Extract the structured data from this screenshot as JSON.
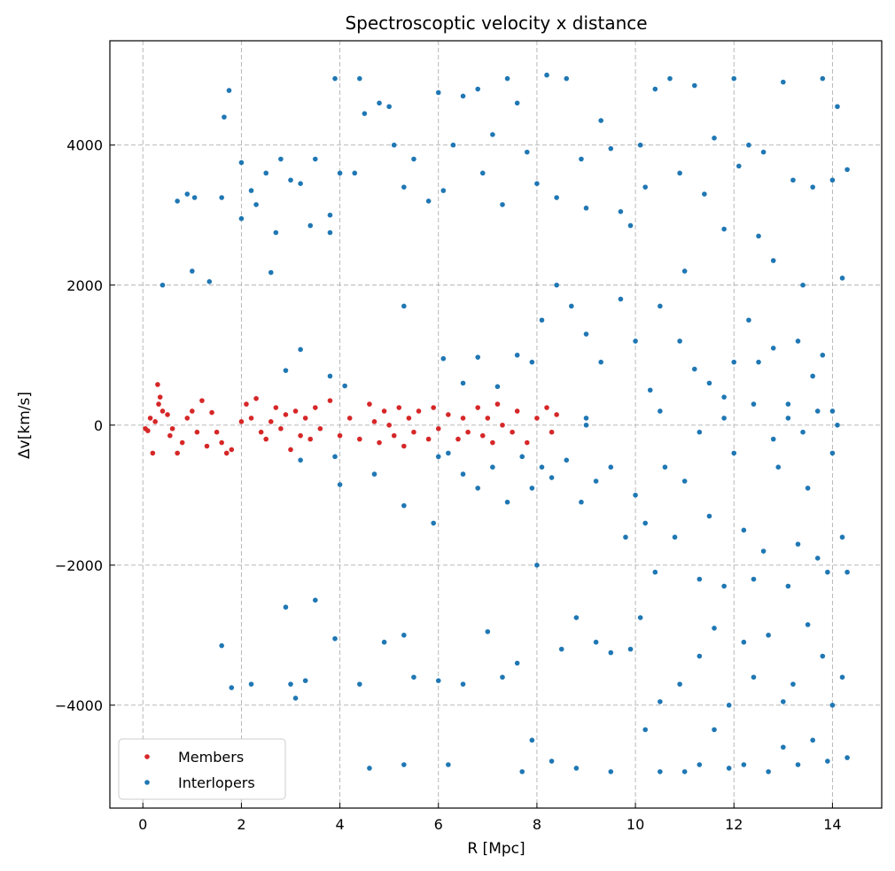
{
  "chart_data": {
    "type": "scatter",
    "title": "Spectroscoptic velocity x distance",
    "xlabel": "R [Mpc]",
    "ylabel": "Δv[km/s]",
    "xlim": [
      -0.67,
      15.0
    ],
    "ylim": [
      -5470,
      5490
    ],
    "xticks": [
      0,
      2,
      4,
      6,
      8,
      10,
      12,
      14
    ],
    "yticks": [
      -4000,
      -2000,
      0,
      2000,
      4000
    ],
    "xtick_labels": [
      "0",
      "2",
      "4",
      "6",
      "8",
      "10",
      "12",
      "14"
    ],
    "ytick_labels": [
      "−4000",
      "−2000",
      "0",
      "2000",
      "4000"
    ],
    "grid": true,
    "legend_position": "lower-left",
    "series": [
      {
        "name": "Members",
        "color": "#d62728",
        "points": [
          [
            0.05,
            -50
          ],
          [
            0.1,
            -80
          ],
          [
            0.15,
            100
          ],
          [
            0.2,
            -400
          ],
          [
            0.25,
            50
          ],
          [
            0.3,
            580
          ],
          [
            0.32,
            300
          ],
          [
            0.35,
            400
          ],
          [
            0.4,
            200
          ],
          [
            0.5,
            150
          ],
          [
            0.55,
            -150
          ],
          [
            0.6,
            -50
          ],
          [
            0.7,
            -400
          ],
          [
            0.8,
            -250
          ],
          [
            0.9,
            100
          ],
          [
            1.0,
            200
          ],
          [
            1.1,
            -100
          ],
          [
            1.2,
            350
          ],
          [
            1.3,
            -300
          ],
          [
            1.4,
            180
          ],
          [
            1.5,
            -100
          ],
          [
            1.6,
            -250
          ],
          [
            1.7,
            -400
          ],
          [
            1.8,
            -350
          ],
          [
            2.0,
            50
          ],
          [
            2.1,
            300
          ],
          [
            2.2,
            100
          ],
          [
            2.3,
            380
          ],
          [
            2.4,
            -100
          ],
          [
            2.5,
            -200
          ],
          [
            2.6,
            50
          ],
          [
            2.7,
            250
          ],
          [
            2.8,
            -50
          ],
          [
            2.9,
            150
          ],
          [
            3.0,
            -350
          ],
          [
            3.1,
            200
          ],
          [
            3.2,
            -150
          ],
          [
            3.3,
            100
          ],
          [
            3.4,
            -200
          ],
          [
            3.5,
            250
          ],
          [
            3.6,
            -50
          ],
          [
            3.8,
            350
          ],
          [
            4.0,
            -150
          ],
          [
            4.2,
            100
          ],
          [
            4.4,
            -200
          ],
          [
            4.6,
            300
          ],
          [
            4.7,
            50
          ],
          [
            4.8,
            -250
          ],
          [
            4.9,
            200
          ],
          [
            5.0,
            0
          ],
          [
            5.1,
            -150
          ],
          [
            5.2,
            250
          ],
          [
            5.3,
            -300
          ],
          [
            5.4,
            100
          ],
          [
            5.5,
            -100
          ],
          [
            5.6,
            200
          ],
          [
            5.8,
            -200
          ],
          [
            5.9,
            250
          ],
          [
            6.0,
            -50
          ],
          [
            6.2,
            150
          ],
          [
            6.4,
            -200
          ],
          [
            6.5,
            100
          ],
          [
            6.6,
            -100
          ],
          [
            6.8,
            250
          ],
          [
            6.9,
            -150
          ],
          [
            7.0,
            100
          ],
          [
            7.1,
            -250
          ],
          [
            7.2,
            300
          ],
          [
            7.3,
            0
          ],
          [
            7.5,
            -100
          ],
          [
            7.6,
            200
          ],
          [
            7.8,
            -250
          ],
          [
            8.0,
            100
          ],
          [
            8.2,
            250
          ],
          [
            8.3,
            -100
          ],
          [
            8.4,
            150
          ]
        ]
      },
      {
        "name": "Interlopers",
        "color": "#1f77b4",
        "points": [
          [
            0.4,
            2000
          ],
          [
            0.7,
            3200
          ],
          [
            0.9,
            3300
          ],
          [
            1.0,
            2200
          ],
          [
            1.05,
            3250
          ],
          [
            1.35,
            2050
          ],
          [
            1.6,
            3250
          ],
          [
            1.65,
            4400
          ],
          [
            1.75,
            4780
          ],
          [
            2.0,
            3750
          ],
          [
            2.0,
            2950
          ],
          [
            2.2,
            3350
          ],
          [
            2.3,
            3150
          ],
          [
            2.5,
            3600
          ],
          [
            2.6,
            2180
          ],
          [
            2.7,
            2750
          ],
          [
            2.8,
            3800
          ],
          [
            3.0,
            3500
          ],
          [
            3.2,
            3450
          ],
          [
            3.4,
            2850
          ],
          [
            3.5,
            3800
          ],
          [
            3.8,
            2750
          ],
          [
            3.8,
            3000
          ],
          [
            3.9,
            4950
          ],
          [
            4.0,
            3600
          ],
          [
            4.3,
            3600
          ],
          [
            4.4,
            4950
          ],
          [
            4.5,
            4450
          ],
          [
            4.8,
            4600
          ],
          [
            5.0,
            4550
          ],
          [
            5.1,
            4000
          ],
          [
            5.3,
            3400
          ],
          [
            5.5,
            3800
          ],
          [
            5.8,
            3200
          ],
          [
            6.0,
            4750
          ],
          [
            6.1,
            3350
          ],
          [
            6.3,
            4000
          ],
          [
            6.5,
            4700
          ],
          [
            6.8,
            4800
          ],
          [
            6.9,
            3600
          ],
          [
            7.1,
            4150
          ],
          [
            7.3,
            3150
          ],
          [
            7.4,
            4950
          ],
          [
            7.6,
            4600
          ],
          [
            7.8,
            3900
          ],
          [
            8.0,
            3450
          ],
          [
            8.2,
            5000
          ],
          [
            8.4,
            3250
          ],
          [
            8.6,
            4950
          ],
          [
            8.9,
            3800
          ],
          [
            9.0,
            3100
          ],
          [
            9.3,
            4350
          ],
          [
            9.5,
            3950
          ],
          [
            9.7,
            3050
          ],
          [
            9.9,
            2850
          ],
          [
            10.1,
            4000
          ],
          [
            10.2,
            3400
          ],
          [
            10.4,
            4800
          ],
          [
            10.7,
            4950
          ],
          [
            10.9,
            3600
          ],
          [
            11.0,
            2200
          ],
          [
            11.2,
            4850
          ],
          [
            11.4,
            3300
          ],
          [
            11.6,
            4100
          ],
          [
            11.8,
            2800
          ],
          [
            12.0,
            4950
          ],
          [
            12.1,
            3700
          ],
          [
            12.3,
            4000
          ],
          [
            12.5,
            2700
          ],
          [
            12.6,
            3900
          ],
          [
            12.8,
            2350
          ],
          [
            13.0,
            4900
          ],
          [
            13.2,
            3500
          ],
          [
            13.4,
            2000
          ],
          [
            13.6,
            3400
          ],
          [
            13.8,
            4950
          ],
          [
            14.0,
            3500
          ],
          [
            14.1,
            4550
          ],
          [
            14.2,
            2100
          ],
          [
            14.3,
            3650
          ],
          [
            2.9,
            780
          ],
          [
            3.2,
            1080
          ],
          [
            3.8,
            700
          ],
          [
            4.1,
            560
          ],
          [
            5.3,
            1700
          ],
          [
            6.1,
            950
          ],
          [
            6.5,
            600
          ],
          [
            6.8,
            970
          ],
          [
            7.2,
            550
          ],
          [
            7.6,
            1000
          ],
          [
            7.9,
            900
          ],
          [
            8.1,
            1500
          ],
          [
            8.4,
            2000
          ],
          [
            8.7,
            1700
          ],
          [
            9.0,
            1300
          ],
          [
            9.3,
            900
          ],
          [
            9.7,
            1800
          ],
          [
            10.0,
            1200
          ],
          [
            10.3,
            500
          ],
          [
            10.5,
            1700
          ],
          [
            10.9,
            1200
          ],
          [
            11.2,
            800
          ],
          [
            11.5,
            600
          ],
          [
            11.8,
            400
          ],
          [
            12.0,
            900
          ],
          [
            12.3,
            1500
          ],
          [
            12.5,
            900
          ],
          [
            12.8,
            1100
          ],
          [
            13.1,
            300
          ],
          [
            13.3,
            1200
          ],
          [
            13.6,
            700
          ],
          [
            13.8,
            1000
          ],
          [
            14.0,
            200
          ],
          [
            3.2,
            -500
          ],
          [
            3.9,
            -450
          ],
          [
            4.0,
            -850
          ],
          [
            4.7,
            -700
          ],
          [
            5.3,
            -1150
          ],
          [
            5.9,
            -1400
          ],
          [
            6.0,
            -450
          ],
          [
            6.2,
            -400
          ],
          [
            6.5,
            -700
          ],
          [
            6.8,
            -900
          ],
          [
            7.1,
            -600
          ],
          [
            7.4,
            -1100
          ],
          [
            7.7,
            -450
          ],
          [
            7.9,
            -900
          ],
          [
            8.1,
            -600
          ],
          [
            8.3,
            -750
          ],
          [
            8.6,
            -500
          ],
          [
            8.9,
            -1100
          ],
          [
            9.0,
            0
          ],
          [
            9.2,
            -800
          ],
          [
            9.5,
            -600
          ],
          [
            9.8,
            -1600
          ],
          [
            10.0,
            -1000
          ],
          [
            10.2,
            -1400
          ],
          [
            10.4,
            -2100
          ],
          [
            10.6,
            -600
          ],
          [
            10.8,
            -1600
          ],
          [
            11.0,
            -800
          ],
          [
            11.3,
            -2200
          ],
          [
            11.5,
            -1300
          ],
          [
            11.8,
            -2300
          ],
          [
            12.0,
            -400
          ],
          [
            12.2,
            -1500
          ],
          [
            12.4,
            -2200
          ],
          [
            12.6,
            -1800
          ],
          [
            12.9,
            -600
          ],
          [
            13.1,
            -2300
          ],
          [
            13.3,
            -1700
          ],
          [
            13.5,
            -900
          ],
          [
            13.7,
            -1900
          ],
          [
            13.9,
            -2100
          ],
          [
            14.0,
            -400
          ],
          [
            14.2,
            -1600
          ],
          [
            14.3,
            -2100
          ],
          [
            9.0,
            100
          ],
          [
            10.5,
            200
          ],
          [
            11.3,
            -100
          ],
          [
            11.8,
            100
          ],
          [
            12.4,
            300
          ],
          [
            12.8,
            -200
          ],
          [
            13.1,
            100
          ],
          [
            13.4,
            -100
          ],
          [
            13.7,
            200
          ],
          [
            14.1,
            0
          ],
          [
            2.9,
            -2600
          ],
          [
            3.5,
            -2500
          ],
          [
            1.6,
            -3150
          ],
          [
            1.8,
            -3750
          ],
          [
            2.2,
            -3700
          ],
          [
            3.0,
            -3700
          ],
          [
            3.1,
            -3900
          ],
          [
            3.3,
            -3650
          ],
          [
            3.9,
            -3050
          ],
          [
            4.4,
            -3700
          ],
          [
            4.9,
            -3100
          ],
          [
            5.3,
            -3000
          ],
          [
            5.5,
            -3600
          ],
          [
            6.0,
            -3650
          ],
          [
            6.5,
            -3700
          ],
          [
            7.0,
            -2950
          ],
          [
            7.3,
            -3600
          ],
          [
            7.6,
            -3400
          ],
          [
            8.0,
            -2000
          ],
          [
            8.5,
            -3200
          ],
          [
            8.8,
            -2750
          ],
          [
            9.2,
            -3100
          ],
          [
            9.5,
            -3250
          ],
          [
            9.9,
            -3200
          ],
          [
            10.1,
            -2750
          ],
          [
            10.5,
            -3950
          ],
          [
            10.9,
            -3700
          ],
          [
            11.3,
            -3300
          ],
          [
            11.6,
            -2900
          ],
          [
            11.9,
            -4000
          ],
          [
            12.2,
            -3100
          ],
          [
            12.4,
            -3600
          ],
          [
            12.7,
            -3000
          ],
          [
            13.0,
            -3950
          ],
          [
            13.2,
            -3700
          ],
          [
            13.5,
            -2850
          ],
          [
            13.8,
            -3300
          ],
          [
            14.0,
            -4000
          ],
          [
            14.2,
            -3600
          ],
          [
            4.6,
            -4900
          ],
          [
            5.3,
            -4850
          ],
          [
            6.2,
            -4850
          ],
          [
            7.7,
            -4950
          ],
          [
            7.9,
            -4500
          ],
          [
            8.3,
            -4800
          ],
          [
            8.8,
            -4900
          ],
          [
            9.5,
            -4950
          ],
          [
            10.2,
            -4350
          ],
          [
            10.5,
            -4950
          ],
          [
            11.0,
            -4950
          ],
          [
            11.3,
            -4850
          ],
          [
            11.6,
            -4350
          ],
          [
            11.9,
            -4900
          ],
          [
            12.2,
            -4850
          ],
          [
            12.7,
            -4950
          ],
          [
            13.0,
            -4600
          ],
          [
            13.3,
            -4850
          ],
          [
            13.6,
            -4500
          ],
          [
            13.9,
            -4800
          ],
          [
            14.3,
            -4750
          ]
        ]
      }
    ]
  }
}
